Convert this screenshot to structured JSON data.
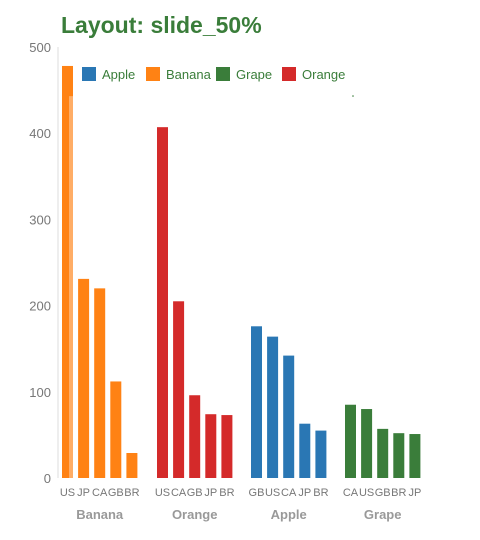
{
  "chart_data": {
    "type": "bar",
    "title": "Layout: slide_50%",
    "xlabel": "",
    "ylabel": "",
    "ylim": [
      0,
      500
    ],
    "yticks": [
      "0",
      "100",
      "200",
      "300",
      "400",
      "500"
    ],
    "legend": [
      {
        "name": "Apple",
        "color": "#2a77b4"
      },
      {
        "name": "Banana",
        "color": "#ff8214"
      },
      {
        "name": "Grape",
        "color": "#3a7d3a"
      },
      {
        "name": "Orange",
        "color": "#d42a2a"
      }
    ],
    "groups": [
      {
        "name": "Banana",
        "color": "#ff8214",
        "categories": [
          "US",
          "JP",
          "CA",
          "GB",
          "BR"
        ],
        "values": [
          478,
          231,
          220,
          112,
          29
        ],
        "tooltip_edge": 443
      },
      {
        "name": "Orange",
        "color": "#d42a2a",
        "categories": [
          "US",
          "CA",
          "GB",
          "JP",
          "BR"
        ],
        "values": [
          407,
          205,
          96,
          74,
          73
        ]
      },
      {
        "name": "Apple",
        "color": "#2a77b4",
        "categories": [
          "GB",
          "US",
          "CA",
          "JP",
          "BR"
        ],
        "values": [
          176,
          164,
          142,
          63,
          55
        ]
      },
      {
        "name": "Grape",
        "color": "#3a7d3a",
        "categories": [
          "CA",
          "US",
          "GB",
          "BR",
          "JP"
        ],
        "values": [
          85,
          80,
          57,
          52,
          51
        ]
      }
    ]
  }
}
